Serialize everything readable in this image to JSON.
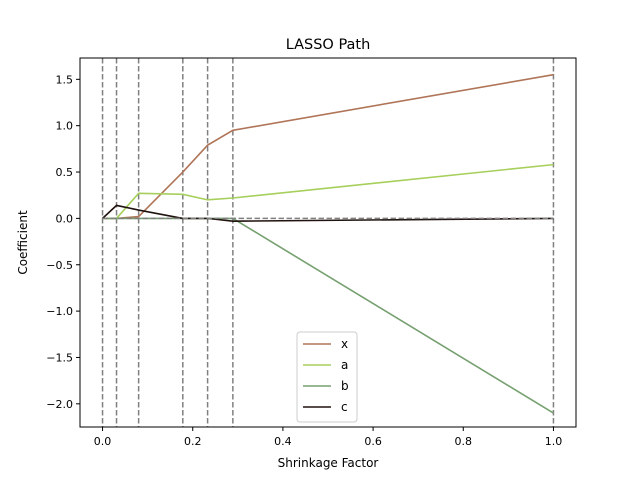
{
  "chart_data": {
    "type": "line",
    "title": "LASSO Path",
    "xlabel": "Shrinkage Factor",
    "ylabel": "Coefficient",
    "xlim": [
      -0.05,
      1.05
    ],
    "ylim": [
      -2.25,
      1.73
    ],
    "xticks": [
      0.0,
      0.2,
      0.4,
      0.6,
      0.8,
      1.0
    ],
    "xtick_labels": [
      "0.0",
      "0.2",
      "0.4",
      "0.6",
      "0.8",
      "1.0"
    ],
    "yticks": [
      -2.0,
      -1.5,
      -1.0,
      -0.5,
      0.0,
      0.5,
      1.0,
      1.5
    ],
    "ytick_labels": [
      "−2.0",
      "−1.5",
      "−1.0",
      "−0.5",
      "0.0",
      "0.5",
      "1.0",
      "1.5"
    ],
    "grid": false,
    "legend_position": "bottom-center",
    "vertical_lines": [
      0.0,
      0.031,
      0.08,
      0.178,
      0.233,
      0.289,
      1.0
    ],
    "zero_line": true,
    "series": [
      {
        "name": "x",
        "color": "#b07558",
        "x": [
          0.0,
          0.031,
          0.08,
          0.178,
          0.233,
          0.289,
          1.0
        ],
        "y": [
          0.0,
          0.0,
          0.02,
          0.5,
          0.79,
          0.95,
          1.55
        ]
      },
      {
        "name": "a",
        "color": "#a6cf5b",
        "x": [
          0.0,
          0.031,
          0.08,
          0.178,
          0.233,
          0.289,
          1.0
        ],
        "y": [
          0.0,
          0.0,
          0.27,
          0.26,
          0.2,
          0.22,
          0.58
        ]
      },
      {
        "name": "b",
        "color": "#76a070",
        "x": [
          0.0,
          0.031,
          0.08,
          0.178,
          0.233,
          0.289,
          1.0
        ],
        "y": [
          0.0,
          0.0,
          0.0,
          0.0,
          0.0,
          0.0,
          -2.1
        ]
      },
      {
        "name": "c",
        "color": "#20120e",
        "x": [
          0.0,
          0.031,
          0.08,
          0.178,
          0.233,
          0.289,
          1.0
        ],
        "y": [
          0.0,
          0.14,
          0.09,
          0.0,
          0.0,
          -0.03,
          0.0
        ]
      }
    ]
  }
}
